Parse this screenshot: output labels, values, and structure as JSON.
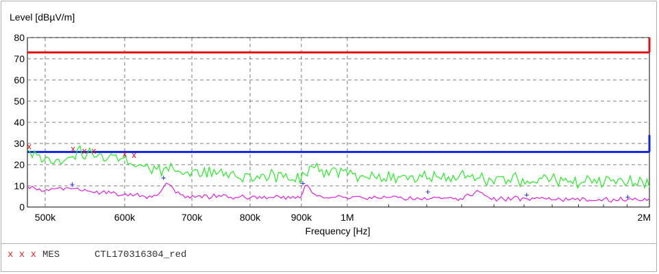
{
  "chart_data": {
    "type": "line",
    "ylabel": "Level [dBµV/m]",
    "xlabel": "Frequency [Hz]",
    "x_scale": "log",
    "xlim": [
      480000,
      2000000
    ],
    "ylim": [
      0,
      80
    ],
    "grid": true,
    "y_ticks": [
      0,
      10,
      20,
      30,
      40,
      50,
      60,
      70,
      80
    ],
    "x_ticks": [
      {
        "value": 500000,
        "label": "500k"
      },
      {
        "value": 600000,
        "label": "600k"
      },
      {
        "value": 700000,
        "label": "700k"
      },
      {
        "value": 800000,
        "label": "800k"
      },
      {
        "value": 900000,
        "label": "900k"
      },
      {
        "value": 1000000,
        "label": "1M"
      },
      {
        "value": 2000000,
        "label": "2M"
      }
    ],
    "limits": [
      {
        "color": "#e01010",
        "level": 73,
        "end_level": 80
      },
      {
        "color": "#1020e0",
        "level": 26,
        "end_level": 34
      }
    ],
    "series": [
      {
        "color": "#22ee22",
        "x": [
          480000,
          520000,
          540000,
          560000,
          600000,
          610000,
          620000,
          650000,
          680000,
          700000,
          750000,
          800000,
          850000,
          900000,
          930000,
          950000,
          1000000,
          1050000,
          1100000,
          1200000,
          1300000,
          1400000,
          1500000,
          1600000,
          1700000,
          1800000,
          1900000,
          2000000
        ],
        "y": [
          27,
          20,
          26,
          24,
          24,
          22,
          19,
          18,
          17,
          16,
          16,
          15,
          15,
          14,
          19,
          17,
          16,
          15,
          15,
          14,
          14,
          13,
          13,
          13,
          12,
          12,
          12,
          12
        ]
      },
      {
        "color": "#e020e0",
        "x": [
          480000,
          500000,
          530000,
          560000,
          600000,
          630000,
          650000,
          660000,
          680000,
          700000,
          750000,
          800000,
          850000,
          900000,
          910000,
          930000,
          1000000,
          1100000,
          1200000,
          1300000,
          1350000,
          1400000,
          1500000,
          1600000,
          1700000,
          1800000,
          1900000,
          2000000
        ],
        "y": [
          9,
          8,
          9,
          7,
          6,
          5,
          6,
          12,
          6,
          5,
          5,
          4.5,
          4.5,
          4.5,
          11,
          5,
          4.5,
          4.5,
          4,
          4,
          7,
          4,
          4,
          4,
          3.5,
          3.5,
          3.5,
          3.5
        ]
      }
    ],
    "measurements": {
      "red_x": [
        {
          "x": 482000,
          "y": 28.5
        },
        {
          "x": 533000,
          "y": 27.5
        },
        {
          "x": 547000,
          "y": 26.5
        },
        {
          "x": 559000,
          "y": 26.5
        },
        {
          "x": 600000,
          "y": 25
        },
        {
          "x": 613000,
          "y": 24.5
        }
      ],
      "blue_plus": [
        {
          "x": 532000,
          "y": 11
        },
        {
          "x": 656000,
          "y": 14
        },
        {
          "x": 903000,
          "y": 11.5
        },
        {
          "x": 1203000,
          "y": 7.5
        },
        {
          "x": 1509000,
          "y": 6
        },
        {
          "x": 1903000,
          "y": 5
        }
      ]
    }
  },
  "legend": {
    "marks": "x x x",
    "label": "MES",
    "file": "CTL170316304_red"
  }
}
